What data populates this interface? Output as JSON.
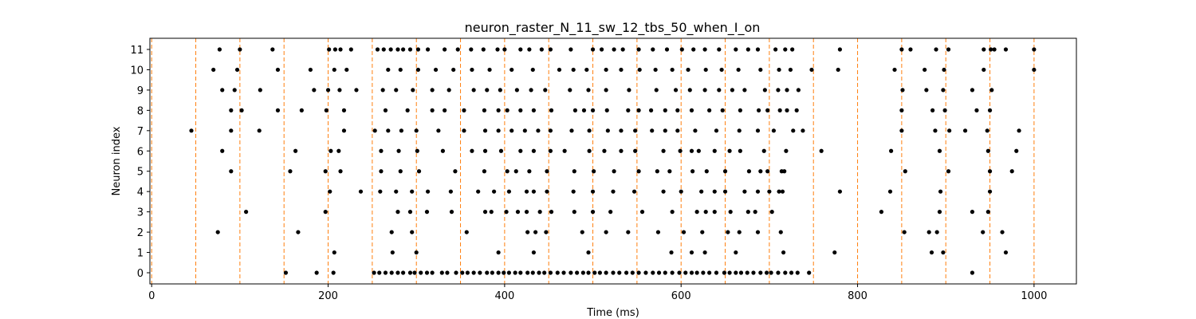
{
  "chart_data": {
    "type": "scatter",
    "title": "neuron_raster_N_11_sw_12_tbs_50_when_I_on",
    "xlabel": "Time (ms)",
    "ylabel": "Neuron index",
    "xlim": [
      -2,
      1048
    ],
    "ylim": [
      -0.55,
      11.55
    ],
    "x_ticks": [
      0,
      200,
      400,
      600,
      800,
      1000
    ],
    "y_ticks": [
      0,
      1,
      2,
      3,
      4,
      5,
      6,
      7,
      8,
      9,
      10,
      11
    ],
    "grid": false,
    "marker_color": "#000000",
    "vline_color": "#ff7f0e",
    "vlines": [
      0,
      50,
      100,
      150,
      200,
      250,
      300,
      350,
      400,
      450,
      500,
      550,
      600,
      650,
      700,
      750,
      800,
      850,
      900,
      950,
      1000
    ],
    "series": [
      {
        "neuron": 0,
        "x": [
          152,
          187,
          206,
          252,
          258,
          265,
          272,
          279,
          285,
          293,
          298,
          305,
          312,
          318,
          329,
          335,
          345,
          352,
          358,
          365,
          372,
          380,
          386,
          393,
          399,
          405,
          412,
          418,
          426,
          432,
          439,
          445,
          452,
          460,
          467,
          475,
          482,
          489,
          495,
          502,
          508,
          515,
          523,
          530,
          538,
          545,
          552,
          560,
          568,
          575,
          582,
          590,
          598,
          605,
          612,
          618,
          625,
          632,
          640,
          649,
          655,
          662,
          668,
          675,
          682,
          690,
          697,
          702,
          710,
          718,
          725,
          732,
          745,
          930
        ]
      },
      {
        "neuron": 1,
        "x": [
          207,
          273,
          300,
          393,
          433,
          495,
          589,
          612,
          627,
          662,
          716,
          774,
          884,
          897,
          968
        ]
      },
      {
        "neuron": 2,
        "x": [
          75,
          166,
          272,
          295,
          357,
          426,
          435,
          447,
          488,
          515,
          540,
          574,
          603,
          624,
          653,
          666,
          687,
          713,
          853,
          881,
          890,
          942,
          964
        ]
      },
      {
        "neuron": 3,
        "x": [
          107,
          197,
          279,
          293,
          312,
          340,
          378,
          385,
          402,
          415,
          425,
          440,
          453,
          479,
          500,
          520,
          556,
          590,
          618,
          628,
          638,
          656,
          676,
          684,
          703,
          827,
          893,
          930,
          948
        ]
      },
      {
        "neuron": 4,
        "x": [
          202,
          237,
          259,
          277,
          295,
          313,
          339,
          370,
          388,
          405,
          425,
          433,
          448,
          478,
          500,
          523,
          547,
          580,
          600,
          623,
          638,
          650,
          672,
          687,
          700,
          711,
          715,
          780,
          837,
          894,
          950
        ]
      },
      {
        "neuron": 5,
        "x": [
          90,
          157,
          197,
          214,
          260,
          282,
          303,
          344,
          377,
          403,
          413,
          428,
          448,
          479,
          501,
          524,
          552,
          573,
          587,
          613,
          629,
          650,
          677,
          690,
          698,
          714,
          717,
          854,
          903,
          950,
          975
        ]
      },
      {
        "neuron": 6,
        "x": [
          80,
          163,
          203,
          212,
          260,
          280,
          301,
          330,
          363,
          378,
          396,
          418,
          433,
          452,
          468,
          496,
          513,
          532,
          548,
          580,
          599,
          612,
          620,
          638,
          655,
          667,
          694,
          719,
          759,
          838,
          893,
          948,
          980
        ]
      },
      {
        "neuron": 7,
        "x": [
          45,
          90,
          122,
          218,
          253,
          268,
          283,
          300,
          325,
          354,
          378,
          393,
          408,
          423,
          438,
          452,
          476,
          496,
          517,
          532,
          548,
          567,
          582,
          596,
          616,
          640,
          666,
          687,
          705,
          727,
          738,
          850,
          888,
          904,
          922,
          947,
          983
        ]
      },
      {
        "neuron": 8,
        "x": [
          90,
          102,
          143,
          170,
          198,
          218,
          265,
          290,
          318,
          332,
          354,
          377,
          393,
          403,
          418,
          433,
          453,
          480,
          490,
          500,
          516,
          540,
          552,
          566,
          582,
          596,
          612,
          632,
          647,
          667,
          688,
          698,
          712,
          720,
          731,
          850,
          885,
          899,
          935,
          950
        ]
      },
      {
        "neuron": 9,
        "x": [
          80,
          94,
          123,
          184,
          200,
          213,
          232,
          262,
          277,
          296,
          318,
          337,
          365,
          380,
          395,
          414,
          430,
          446,
          474,
          495,
          515,
          541,
          572,
          594,
          610,
          627,
          643,
          658,
          672,
          695,
          710,
          720,
          733,
          851,
          878,
          897,
          930,
          952
        ]
      },
      {
        "neuron": 10,
        "x": [
          70,
          97,
          143,
          180,
          207,
          221,
          268,
          282,
          302,
          322,
          342,
          363,
          383,
          408,
          432,
          462,
          478,
          493,
          515,
          532,
          553,
          571,
          590,
          608,
          628,
          646,
          665,
          690,
          711,
          724,
          748,
          778,
          842,
          876,
          898,
          943,
          1000
        ]
      },
      {
        "neuron": 11,
        "x": [
          77,
          100,
          137,
          201,
          208,
          214,
          226,
          256,
          263,
          271,
          279,
          285,
          293,
          302,
          313,
          332,
          347,
          362,
          376,
          392,
          400,
          418,
          428,
          442,
          452,
          475,
          500,
          510,
          524,
          534,
          552,
          568,
          584,
          601,
          614,
          627,
          643,
          662,
          676,
          687,
          707,
          718,
          726,
          780,
          850,
          860,
          889,
          903,
          943,
          951,
          955,
          968,
          1000
        ]
      }
    ]
  }
}
